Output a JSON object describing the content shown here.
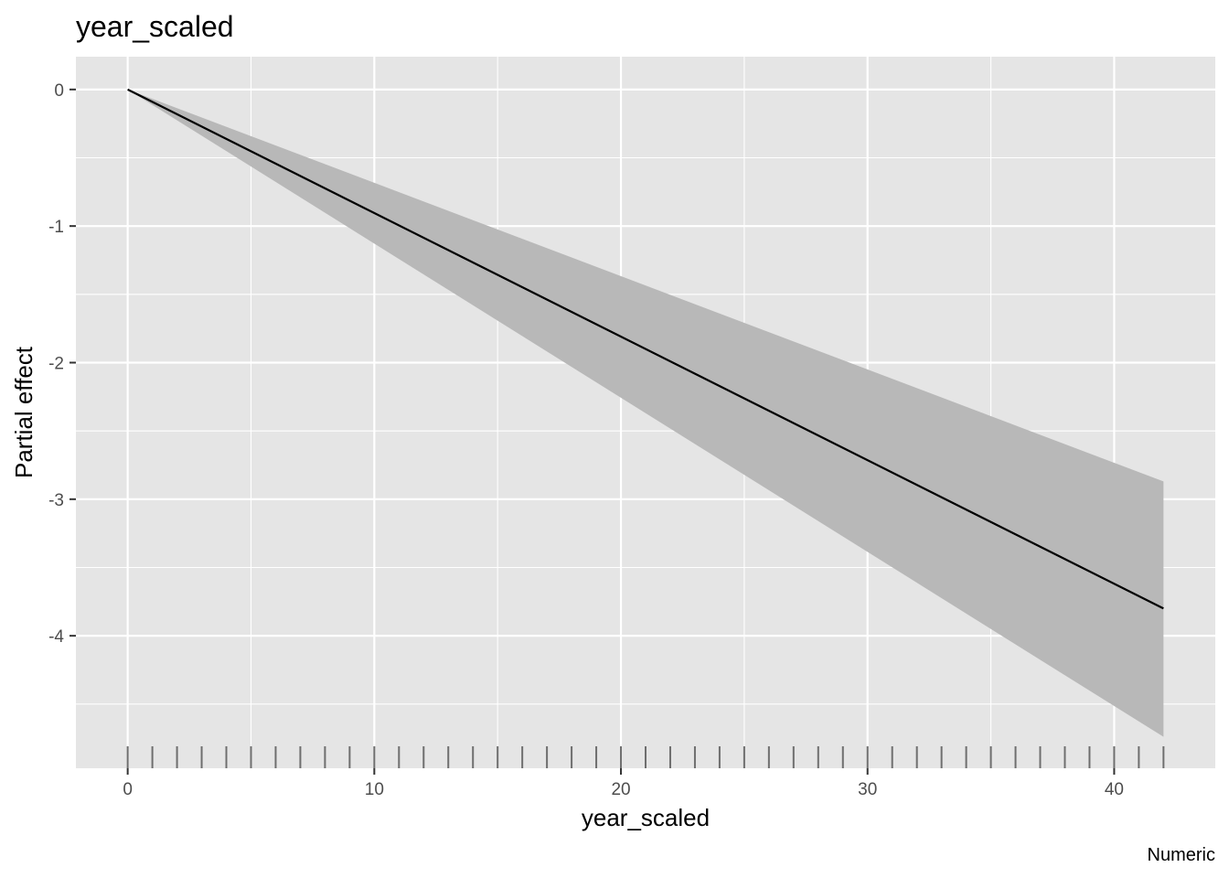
{
  "chart_data": {
    "type": "line",
    "title": "year_scaled",
    "xlabel": "year_scaled",
    "ylabel": "Partial effect",
    "caption": "Numeric",
    "xlim": [
      -2.1,
      44.1
    ],
    "ylim": [
      -4.97,
      0.24
    ],
    "x_ticks": [
      0,
      10,
      20,
      30,
      40
    ],
    "x_tick_labels": [
      "0",
      "10",
      "20",
      "30",
      "40"
    ],
    "y_ticks": [
      0,
      -1,
      -2,
      -3,
      -4
    ],
    "y_tick_labels": [
      "0",
      "-1",
      "-2",
      "-3",
      "-4"
    ],
    "grid": true,
    "series": [
      {
        "x": [
          0,
          42
        ],
        "y": [
          0,
          -3.8
        ]
      }
    ],
    "confidence_band": {
      "x": [
        0,
        42
      ],
      "lower": [
        0,
        -4.74
      ],
      "upper": [
        0,
        -2.87
      ]
    },
    "rug_x": [
      0,
      1,
      2,
      3,
      4,
      5,
      6,
      7,
      8,
      9,
      10,
      11,
      12,
      13,
      14,
      15,
      16,
      17,
      18,
      19,
      20,
      21,
      22,
      23,
      24,
      25,
      26,
      27,
      28,
      29,
      30,
      31,
      32,
      33,
      34,
      35,
      36,
      37,
      38,
      39,
      40,
      41,
      42
    ],
    "colors": {
      "panel": "#e5e5e5",
      "grid": "#ffffff",
      "line": "#000000",
      "band": "#b8b8b8",
      "rug": "#6e6e6e",
      "tick_text": "#4d4d4d"
    }
  }
}
